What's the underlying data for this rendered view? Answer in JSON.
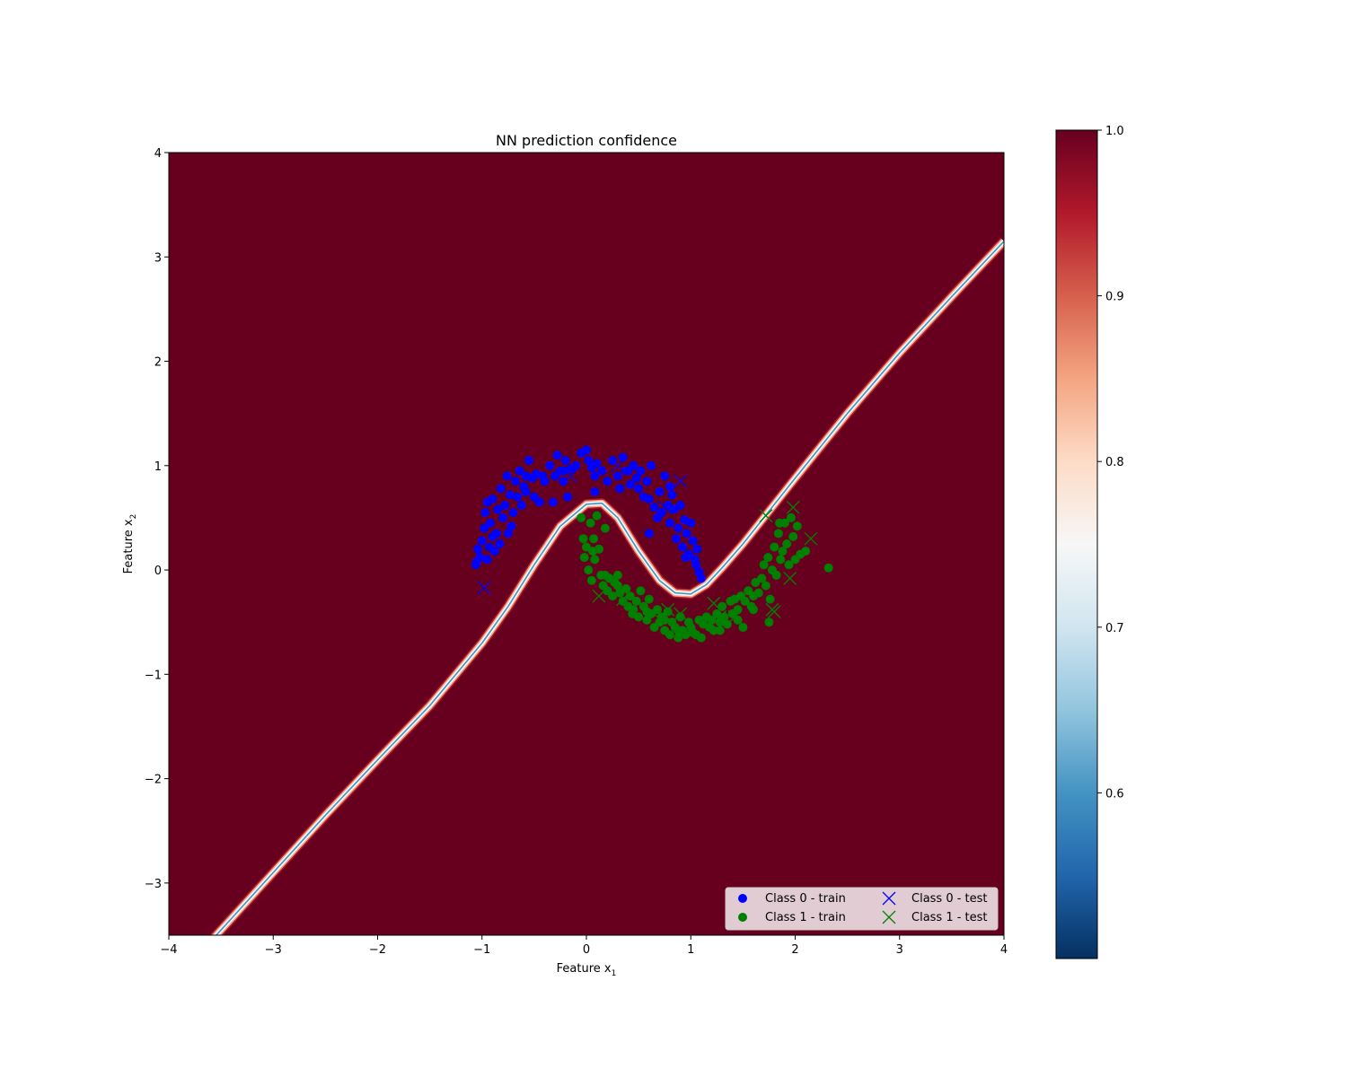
{
  "chart_data": {
    "type": "scatter",
    "title": "NN prediction confidence",
    "xlabel": "Feature x",
    "xlabel_sub": "1",
    "ylabel": "Feature x",
    "ylabel_sub": "2",
    "xlim": [
      -4,
      4
    ],
    "ylim": [
      -3.5,
      4
    ],
    "xticks": [
      "−4",
      "−3",
      "−2",
      "−1",
      "0",
      "1",
      "2",
      "3",
      "4"
    ],
    "xtick_values": [
      -4,
      -3,
      -2,
      -1,
      0,
      1,
      2,
      3,
      4
    ],
    "yticks": [
      "−3",
      "−2",
      "−1",
      "0",
      "1",
      "2",
      "3",
      "4"
    ],
    "ytick_values": [
      -3,
      -2,
      -1,
      0,
      1,
      2,
      3,
      4
    ],
    "grid": false,
    "legend_position": "lower-right",
    "legend_columns": 2,
    "background_confidence": 1.0,
    "decision_boundary": {
      "confidence": 0.5,
      "points": [
        [
          -4,
          -4.0
        ],
        [
          -3.5,
          -3.45
        ],
        [
          -3,
          -2.9
        ],
        [
          -2.5,
          -2.35
        ],
        [
          -2,
          -1.82
        ],
        [
          -1.5,
          -1.3
        ],
        [
          -1.0,
          -0.7
        ],
        [
          -0.75,
          -0.35
        ],
        [
          -0.5,
          0.05
        ],
        [
          -0.25,
          0.42
        ],
        [
          0,
          0.63
        ],
        [
          0.15,
          0.64
        ],
        [
          0.3,
          0.5
        ],
        [
          0.5,
          0.18
        ],
        [
          0.7,
          -0.1
        ],
        [
          0.85,
          -0.22
        ],
        [
          1.0,
          -0.23
        ],
        [
          1.15,
          -0.14
        ],
        [
          1.3,
          0.02
        ],
        [
          1.5,
          0.25
        ],
        [
          2,
          0.88
        ],
        [
          2.5,
          1.5
        ],
        [
          3,
          2.08
        ],
        [
          3.5,
          2.62
        ],
        [
          4,
          3.15
        ]
      ]
    },
    "colorbar": {
      "colormap": "RdBu_r",
      "range": [
        0.5,
        1.0
      ],
      "ticks": [
        "0.6",
        "0.7",
        "0.8",
        "0.9",
        "1.0"
      ],
      "tick_values": [
        0.6,
        0.7,
        0.8,
        0.9,
        1.0
      ]
    },
    "series": [
      {
        "name": "Class 0 - train",
        "marker": "circle",
        "color": "#0000ff",
        "points": [
          [
            -1.05,
            0.08
          ],
          [
            -1.04,
            0.2
          ],
          [
            -1.02,
            0.12
          ],
          [
            -1.0,
            0.28
          ],
          [
            -0.98,
            0.4
          ],
          [
            -0.97,
            0.55
          ],
          [
            -0.95,
            0.65
          ],
          [
            -0.93,
            0.22
          ],
          [
            -0.92,
            0.45
          ],
          [
            -0.9,
            0.68
          ],
          [
            -0.88,
            0.18
          ],
          [
            -0.86,
            0.35
          ],
          [
            -0.85,
            0.58
          ],
          [
            -0.83,
            0.25
          ],
          [
            -0.82,
            0.78
          ],
          [
            -0.8,
            0.5
          ],
          [
            -0.78,
            0.62
          ],
          [
            -0.76,
            0.9
          ],
          [
            -0.75,
            0.35
          ],
          [
            -0.73,
            0.72
          ],
          [
            -0.7,
            0.55
          ],
          [
            -0.68,
            0.85
          ],
          [
            -0.66,
            0.7
          ],
          [
            -0.64,
            0.95
          ],
          [
            -0.62,
            0.62
          ],
          [
            -0.6,
            0.8
          ],
          [
            -0.58,
            0.75
          ],
          [
            -0.55,
            1.05
          ],
          [
            -0.52,
            0.88
          ],
          [
            -0.5,
            0.7
          ],
          [
            -0.48,
            0.92
          ],
          [
            -0.45,
            0.65
          ],
          [
            -0.42,
            0.9
          ],
          [
            -0.4,
            0.85
          ],
          [
            -0.35,
            1.0
          ],
          [
            -0.32,
            0.65
          ],
          [
            -0.3,
            0.9
          ],
          [
            -0.28,
            1.1
          ],
          [
            -0.25,
            0.95
          ],
          [
            -0.22,
            0.85
          ],
          [
            -0.2,
            1.05
          ],
          [
            -0.18,
            0.7
          ],
          [
            -0.15,
            0.97
          ],
          [
            -0.1,
            1.0
          ],
          [
            -0.05,
            1.12
          ],
          [
            0.0,
            1.15
          ],
          [
            0.02,
            1.05
          ],
          [
            0.05,
            0.98
          ],
          [
            0.08,
            0.9
          ],
          [
            0.1,
            1.02
          ],
          [
            0.15,
            0.95
          ],
          [
            0.2,
            0.85
          ],
          [
            0.25,
            1.05
          ],
          [
            0.3,
            0.9
          ],
          [
            0.32,
            0.78
          ],
          [
            0.35,
            1.08
          ],
          [
            0.4,
            0.95
          ],
          [
            0.42,
            0.82
          ],
          [
            0.45,
            1.0
          ],
          [
            0.48,
            0.88
          ],
          [
            0.5,
            0.78
          ],
          [
            0.52,
            0.95
          ],
          [
            0.55,
            0.7
          ],
          [
            0.58,
            0.85
          ],
          [
            0.6,
            0.68
          ],
          [
            0.62,
            1.0
          ],
          [
            0.65,
            0.6
          ],
          [
            0.68,
            0.5
          ],
          [
            0.7,
            0.75
          ],
          [
            0.72,
            0.55
          ],
          [
            0.75,
            0.9
          ],
          [
            0.78,
            0.62
          ],
          [
            0.8,
            0.45
          ],
          [
            0.82,
            0.72
          ],
          [
            0.84,
            0.58
          ],
          [
            0.86,
            0.3
          ],
          [
            0.88,
            0.4
          ],
          [
            0.9,
            0.62
          ],
          [
            0.92,
            0.22
          ],
          [
            0.94,
            0.48
          ],
          [
            0.96,
            0.35
          ],
          [
            0.98,
            0.15
          ],
          [
            1.0,
            0.45
          ],
          [
            1.02,
            0.28
          ],
          [
            1.04,
            0.1
          ],
          [
            1.06,
            0.2
          ],
          [
            1.08,
            -0.02
          ],
          [
            1.1,
            -0.08
          ],
          [
            -1.06,
            0.05
          ],
          [
            -0.95,
            0.1
          ],
          [
            -0.9,
            0.32
          ],
          [
            -0.72,
            0.42
          ],
          [
            -0.58,
            0.9
          ],
          [
            -0.22,
            0.95
          ],
          [
            0.08,
            0.75
          ],
          [
            0.38,
            0.95
          ],
          [
            0.6,
            0.35
          ],
          [
            0.8,
            0.8
          ],
          [
            0.95,
            0.12
          ],
          [
            1.05,
            0.05
          ]
        ]
      },
      {
        "name": "Class 1 - train",
        "marker": "circle",
        "color": "#008000",
        "points": [
          [
            -0.05,
            0.5
          ],
          [
            -0.03,
            0.3
          ],
          [
            -0.02,
            0.12
          ],
          [
            0.0,
            0.22
          ],
          [
            0.02,
            0.0
          ],
          [
            0.04,
            0.45
          ],
          [
            0.05,
            -0.1
          ],
          [
            0.07,
            0.3
          ],
          [
            0.08,
            0.1
          ],
          [
            0.1,
            0.52
          ],
          [
            0.12,
            0.2
          ],
          [
            0.14,
            -0.05
          ],
          [
            0.16,
            -0.15
          ],
          [
            0.18,
            0.4
          ],
          [
            0.2,
            -0.2
          ],
          [
            0.22,
            -0.08
          ],
          [
            0.25,
            -0.25
          ],
          [
            0.27,
            -0.12
          ],
          [
            0.3,
            -0.05
          ],
          [
            0.32,
            -0.22
          ],
          [
            0.35,
            -0.3
          ],
          [
            0.38,
            -0.18
          ],
          [
            0.4,
            -0.35
          ],
          [
            0.42,
            -0.25
          ],
          [
            0.45,
            -0.38
          ],
          [
            0.48,
            -0.3
          ],
          [
            0.5,
            -0.45
          ],
          [
            0.52,
            -0.2
          ],
          [
            0.55,
            -0.35
          ],
          [
            0.58,
            -0.48
          ],
          [
            0.6,
            -0.28
          ],
          [
            0.62,
            -0.42
          ],
          [
            0.65,
            -0.55
          ],
          [
            0.68,
            -0.38
          ],
          [
            0.7,
            -0.5
          ],
          [
            0.72,
            -0.45
          ],
          [
            0.75,
            -0.58
          ],
          [
            0.78,
            -0.4
          ],
          [
            0.8,
            -0.62
          ],
          [
            0.82,
            -0.5
          ],
          [
            0.85,
            -0.55
          ],
          [
            0.88,
            -0.65
          ],
          [
            0.9,
            -0.45
          ],
          [
            0.92,
            -0.58
          ],
          [
            0.95,
            -0.62
          ],
          [
            0.98,
            -0.5
          ],
          [
            1.0,
            -0.55
          ],
          [
            1.05,
            -0.62
          ],
          [
            1.08,
            -0.48
          ],
          [
            1.1,
            -0.65
          ],
          [
            1.12,
            -0.52
          ],
          [
            1.15,
            -0.45
          ],
          [
            1.18,
            -0.55
          ],
          [
            1.2,
            -0.48
          ],
          [
            1.22,
            -0.58
          ],
          [
            1.25,
            -0.42
          ],
          [
            1.28,
            -0.5
          ],
          [
            1.3,
            -0.35
          ],
          [
            1.32,
            -0.45
          ],
          [
            1.35,
            -0.52
          ],
          [
            1.38,
            -0.3
          ],
          [
            1.4,
            -0.42
          ],
          [
            1.42,
            -0.28
          ],
          [
            1.45,
            -0.38
          ],
          [
            1.48,
            -0.25
          ],
          [
            1.5,
            -0.55
          ],
          [
            1.52,
            -0.3
          ],
          [
            1.55,
            -0.2
          ],
          [
            1.58,
            -0.35
          ],
          [
            1.6,
            -0.25
          ],
          [
            1.62,
            -0.12
          ],
          [
            1.65,
            -0.22
          ],
          [
            1.68,
            -0.08
          ],
          [
            1.7,
            0.05
          ],
          [
            1.72,
            -0.15
          ],
          [
            1.74,
            0.12
          ],
          [
            1.76,
            -0.28
          ],
          [
            1.78,
            0.0
          ],
          [
            1.8,
            0.22
          ],
          [
            1.82,
            -0.05
          ],
          [
            1.84,
            0.35
          ],
          [
            1.86,
            0.1
          ],
          [
            1.88,
            0.18
          ],
          [
            1.9,
            0.45
          ],
          [
            1.92,
            0.25
          ],
          [
            1.94,
            0.05
          ],
          [
            1.96,
            0.5
          ],
          [
            1.98,
            0.32
          ],
          [
            2.0,
            0.1
          ],
          [
            2.02,
            0.42
          ],
          [
            2.05,
            0.15
          ],
          [
            2.1,
            0.18
          ],
          [
            2.32,
            0.02
          ],
          [
            1.75,
            -0.5
          ],
          [
            1.6,
            -0.38
          ],
          [
            1.45,
            -0.48
          ],
          [
            1.28,
            -0.58
          ],
          [
            1.02,
            -0.6
          ],
          [
            0.88,
            -0.58
          ],
          [
            0.75,
            -0.48
          ],
          [
            0.58,
            -0.4
          ],
          [
            0.44,
            -0.42
          ],
          [
            0.3,
            -0.15
          ],
          [
            0.18,
            -0.05
          ],
          [
            0.06,
            0.18
          ],
          [
            1.85,
            0.45
          ]
        ]
      },
      {
        "name": "Class 0 - test",
        "marker": "x",
        "color": "#0000ff",
        "points": [
          [
            -0.98,
            -0.17
          ],
          [
            0.9,
            0.85
          ],
          [
            0.3,
            1.0
          ],
          [
            -0.15,
            0.9
          ],
          [
            0.75,
            0.6
          ]
        ]
      },
      {
        "name": "Class 1 - test",
        "marker": "x",
        "color": "#008000",
        "points": [
          [
            1.72,
            0.52
          ],
          [
            1.98,
            0.6
          ],
          [
            2.15,
            0.3
          ],
          [
            1.95,
            -0.08
          ],
          [
            1.78,
            -0.38
          ],
          [
            1.8,
            -0.4
          ],
          [
            1.22,
            -0.32
          ],
          [
            0.12,
            -0.25
          ],
          [
            0.35,
            -0.28
          ],
          [
            0.65,
            -0.42
          ],
          [
            0.78,
            -0.38
          ],
          [
            0.9,
            -0.42
          ],
          [
            1.28,
            -0.45
          ],
          [
            1.42,
            -0.45
          ]
        ]
      }
    ]
  }
}
